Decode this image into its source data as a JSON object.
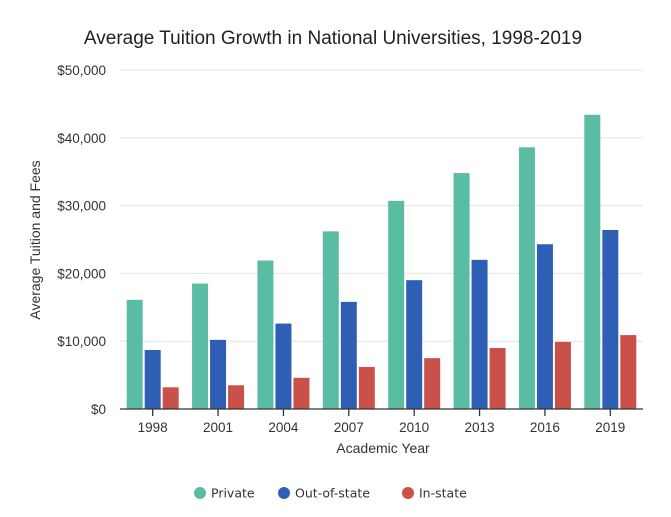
{
  "chart_data": {
    "type": "bar",
    "title": "Average Tuition Growth in National Universities, 1998-2019",
    "xlabel": "Academic Year",
    "ylabel": "Average Tuition and Fees",
    "ylim": [
      0,
      50000
    ],
    "yticks": [
      0,
      10000,
      20000,
      30000,
      40000,
      50000
    ],
    "ytick_labels": [
      "$0",
      "$10,000",
      "$20,000",
      "$30,000",
      "$40,000",
      "$50,000"
    ],
    "grid": true,
    "legend_position": "bottom",
    "categories": [
      "1998",
      "2001",
      "2004",
      "2007",
      "2010",
      "2013",
      "2016",
      "2019"
    ],
    "series": [
      {
        "name": "Private",
        "color": "#5bbca4",
        "values": [
          16100,
          18500,
          21900,
          26200,
          30700,
          34800,
          38600,
          43400
        ]
      },
      {
        "name": "Out-of-state",
        "color": "#2f5fb5",
        "values": [
          8700,
          10200,
          12600,
          15800,
          19000,
          22000,
          24300,
          26400
        ]
      },
      {
        "name": "In-state",
        "color": "#c9514a",
        "values": [
          3200,
          3500,
          4600,
          6200,
          7500,
          9000,
          9900,
          10900
        ]
      }
    ]
  }
}
